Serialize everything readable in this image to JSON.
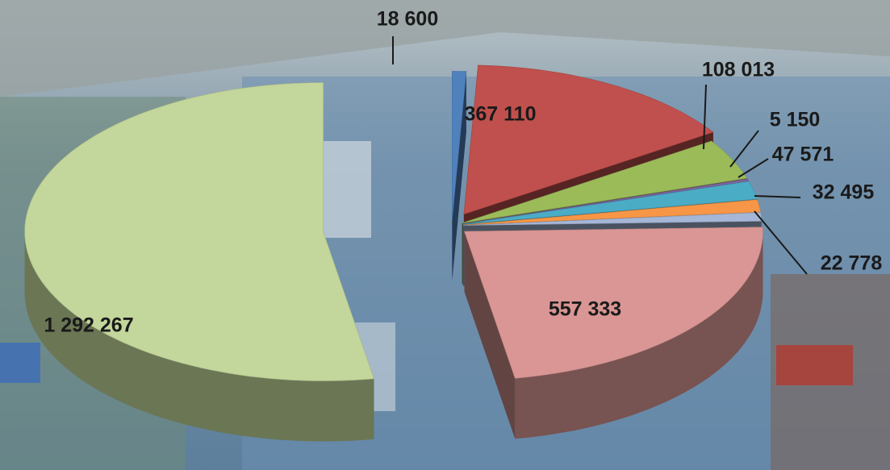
{
  "chart_data": {
    "type": "pie",
    "values": [
      18600,
      367110,
      108013,
      5150,
      47571,
      32495,
      22778,
      557333,
      1292267
    ],
    "value_labels": [
      "18 600",
      "367 110",
      "108 013",
      "5 150",
      "47 571",
      "32 495",
      "22 778",
      "557 333",
      "1 292 267"
    ],
    "colors": [
      "#4f81bd",
      "#c0504d",
      "#9bbb59",
      "#8064a2",
      "#4bacc6",
      "#f79646",
      "#a5b6d6",
      "#d99694",
      "#c3d69b"
    ]
  }
}
